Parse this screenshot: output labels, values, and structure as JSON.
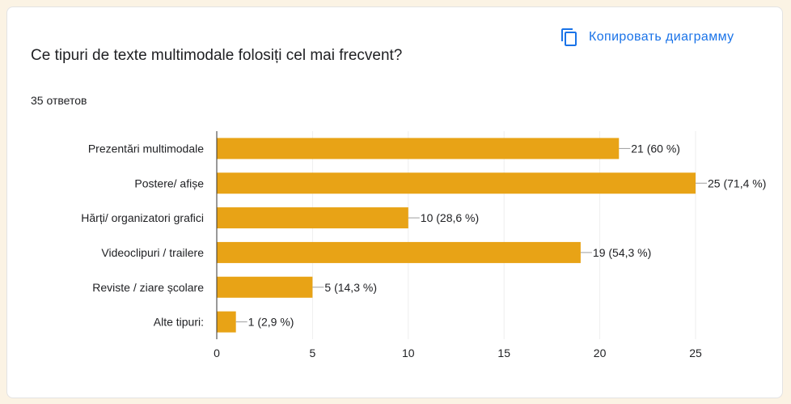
{
  "header": {
    "copy_label": "Копировать диаграмму",
    "copy_icon": "copy-icon",
    "question": "Ce tipuri de texte multimodale folosiți cel mai frecvent?",
    "responses": "35 ответов"
  },
  "colors": {
    "bar": "#e8a316",
    "accent": "#1a73e8",
    "grid": "#eeeeee",
    "axis": "#333333"
  },
  "chart_data": {
    "type": "bar",
    "orientation": "horizontal",
    "categories": [
      "Prezentări multimodale",
      "Postere/ afișe",
      "Hărți/ organizatori grafici",
      "Videoclipuri / trailere",
      "Reviste / ziare școlare",
      "Alte tipuri:"
    ],
    "values": [
      21,
      25,
      10,
      19,
      5,
      1
    ],
    "labels": [
      "21 (60 %)",
      "25 (71,4 %)",
      "10 (28,6 %)",
      "19 (54,3 %)",
      "5 (14,3 %)",
      "1 (2,9 %)"
    ],
    "xlim": [
      0,
      25
    ],
    "xticks": [
      "0",
      "5",
      "10",
      "15",
      "20",
      "25"
    ],
    "grid": true
  }
}
